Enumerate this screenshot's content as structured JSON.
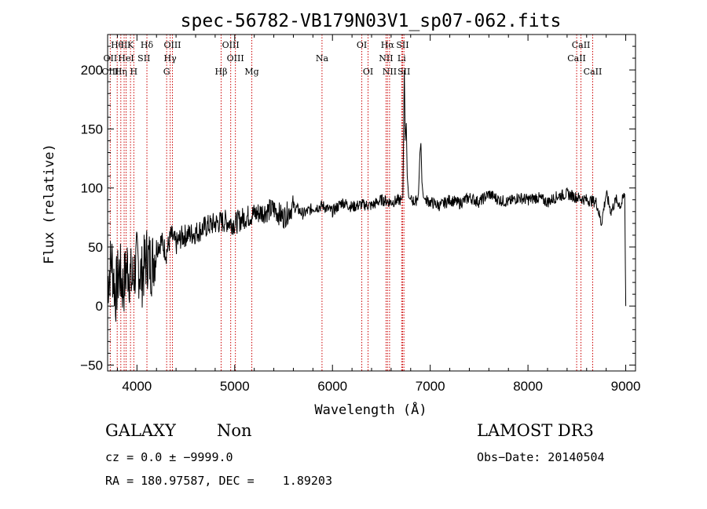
{
  "chart_data": {
    "type": "line",
    "title": "spec-56782-VB179N03V1_sp07-062.fits",
    "xlabel": "Wavelength (Å)",
    "ylabel": "Flux (relative)",
    "xlim": [
      3700,
      9100
    ],
    "ylim": [
      -55,
      230
    ],
    "xticks": [
      4000,
      5000,
      6000,
      7000,
      8000,
      9000
    ],
    "yticks": [
      -50,
      0,
      50,
      100,
      150,
      200
    ],
    "xtick_labels": [
      "4000",
      "5000",
      "6000",
      "7000",
      "8000",
      "9000"
    ],
    "ytick_labels": [
      "−50",
      "0",
      "50",
      "100",
      "150",
      "200"
    ],
    "series": [
      {
        "name": "flux",
        "x": [
          3700,
          3740,
          3780,
          3820,
          3860,
          3900,
          3950,
          4000,
          4050,
          4100,
          4150,
          4200,
          4250,
          4300,
          4350,
          4400,
          4450,
          4500,
          4600,
          4700,
          4800,
          4900,
          5000,
          5100,
          5200,
          5300,
          5400,
          5500,
          5600,
          5700,
          5800,
          5900,
          6000,
          6100,
          6200,
          6300,
          6400,
          6500,
          6600,
          6700,
          6720,
          6735,
          6745,
          6755,
          6765,
          6780,
          6800,
          6850,
          6880,
          6895,
          6905,
          6915,
          6930,
          6950,
          7000,
          7100,
          7200,
          7300,
          7400,
          7500,
          7600,
          7700,
          7800,
          7900,
          8000,
          8100,
          8200,
          8300,
          8400,
          8500,
          8600,
          8700,
          8750,
          8800,
          8850,
          8900,
          8950,
          8990,
          9000
        ],
        "values": [
          20,
          40,
          10,
          30,
          15,
          35,
          20,
          38,
          25,
          42,
          35,
          50,
          55,
          45,
          60,
          52,
          58,
          60,
          62,
          67,
          70,
          72,
          70,
          75,
          78,
          80,
          82,
          75,
          85,
          78,
          83,
          85,
          80,
          88,
          84,
          86,
          85,
          90,
          88,
          90,
          92,
          200,
          140,
          155,
          110,
          92,
          90,
          88,
          95,
          130,
          138,
          105,
          92,
          90,
          88,
          85,
          90,
          87,
          92,
          88,
          95,
          90,
          88,
          92,
          90,
          92,
          88,
          93,
          95,
          92,
          90,
          88,
          70,
          95,
          80,
          90,
          85,
          95,
          0
        ]
      }
    ],
    "spectral_lines": [
      {
        "label": "Hθ",
        "wavelength": 3798,
        "row": 1
      },
      {
        "label": "OII",
        "wavelength": 3727,
        "row": 2
      },
      {
        "label": "OIII",
        "wavelength": 3727,
        "row": 3
      },
      {
        "label": "II",
        "wavelength": 3869,
        "row": 1
      },
      {
        "label": "Hη",
        "wavelength": 3835,
        "row": 3
      },
      {
        "label": "K",
        "wavelength": 3934,
        "row": 1
      },
      {
        "label": "HeI",
        "wavelength": 3889,
        "row": 2
      },
      {
        "label": "H",
        "wavelength": 3968,
        "row": 3
      },
      {
        "label": "SII",
        "wavelength": 4072,
        "row": 2
      },
      {
        "label": "Hδ",
        "wavelength": 4102,
        "row": 1
      },
      {
        "label": "OIII",
        "wavelength": 4363,
        "row": 1
      },
      {
        "label": "Hγ",
        "wavelength": 4340,
        "row": 2
      },
      {
        "label": "G",
        "wavelength": 4304,
        "row": 3
      },
      {
        "label": "Hβ",
        "wavelength": 4861,
        "row": 3
      },
      {
        "label": "OIII",
        "wavelength": 4959,
        "row": 1
      },
      {
        "label": "OIII",
        "wavelength": 5007,
        "row": 2
      },
      {
        "label": "Mg",
        "wavelength": 5175,
        "row": 3
      },
      {
        "label": "Na",
        "wavelength": 5893,
        "row": 2
      },
      {
        "label": "OI",
        "wavelength": 6300,
        "row": 1
      },
      {
        "label": "OI",
        "wavelength": 6364,
        "row": 3
      },
      {
        "label": "Hα",
        "wavelength": 6563,
        "row": 1
      },
      {
        "label": "NII",
        "wavelength": 6548,
        "row": 2
      },
      {
        "label": "NII",
        "wavelength": 6584,
        "row": 3
      },
      {
        "label": "SII",
        "wavelength": 6717,
        "row": 1
      },
      {
        "label": "Li",
        "wavelength": 6708,
        "row": 2
      },
      {
        "label": "SII",
        "wavelength": 6731,
        "row": 3
      },
      {
        "label": "CaII",
        "wavelength": 8542,
        "row": 1
      },
      {
        "label": "CaII",
        "wavelength": 8498,
        "row": 2
      },
      {
        "label": "CaII",
        "wavelength": 8662,
        "row": 3
      }
    ],
    "marker_lines": [
      3727,
      3798,
      3835,
      3869,
      3889,
      3934,
      3968,
      4102,
      4304,
      4340,
      4363,
      4861,
      4959,
      5007,
      5175,
      5893,
      6300,
      6364,
      6548,
      6563,
      6584,
      6708,
      6717,
      6731,
      8498,
      8542,
      8662
    ],
    "marker_color": "#cc0000"
  },
  "info": {
    "class": "GALAXY",
    "subclass": "Non",
    "survey": "LAMOST DR3",
    "cz": "cz = 0.0 ± −9999.0",
    "obs_date": "Obs−Date: 20140504",
    "radec": "RA = 180.97587, DEC =    1.89203"
  }
}
